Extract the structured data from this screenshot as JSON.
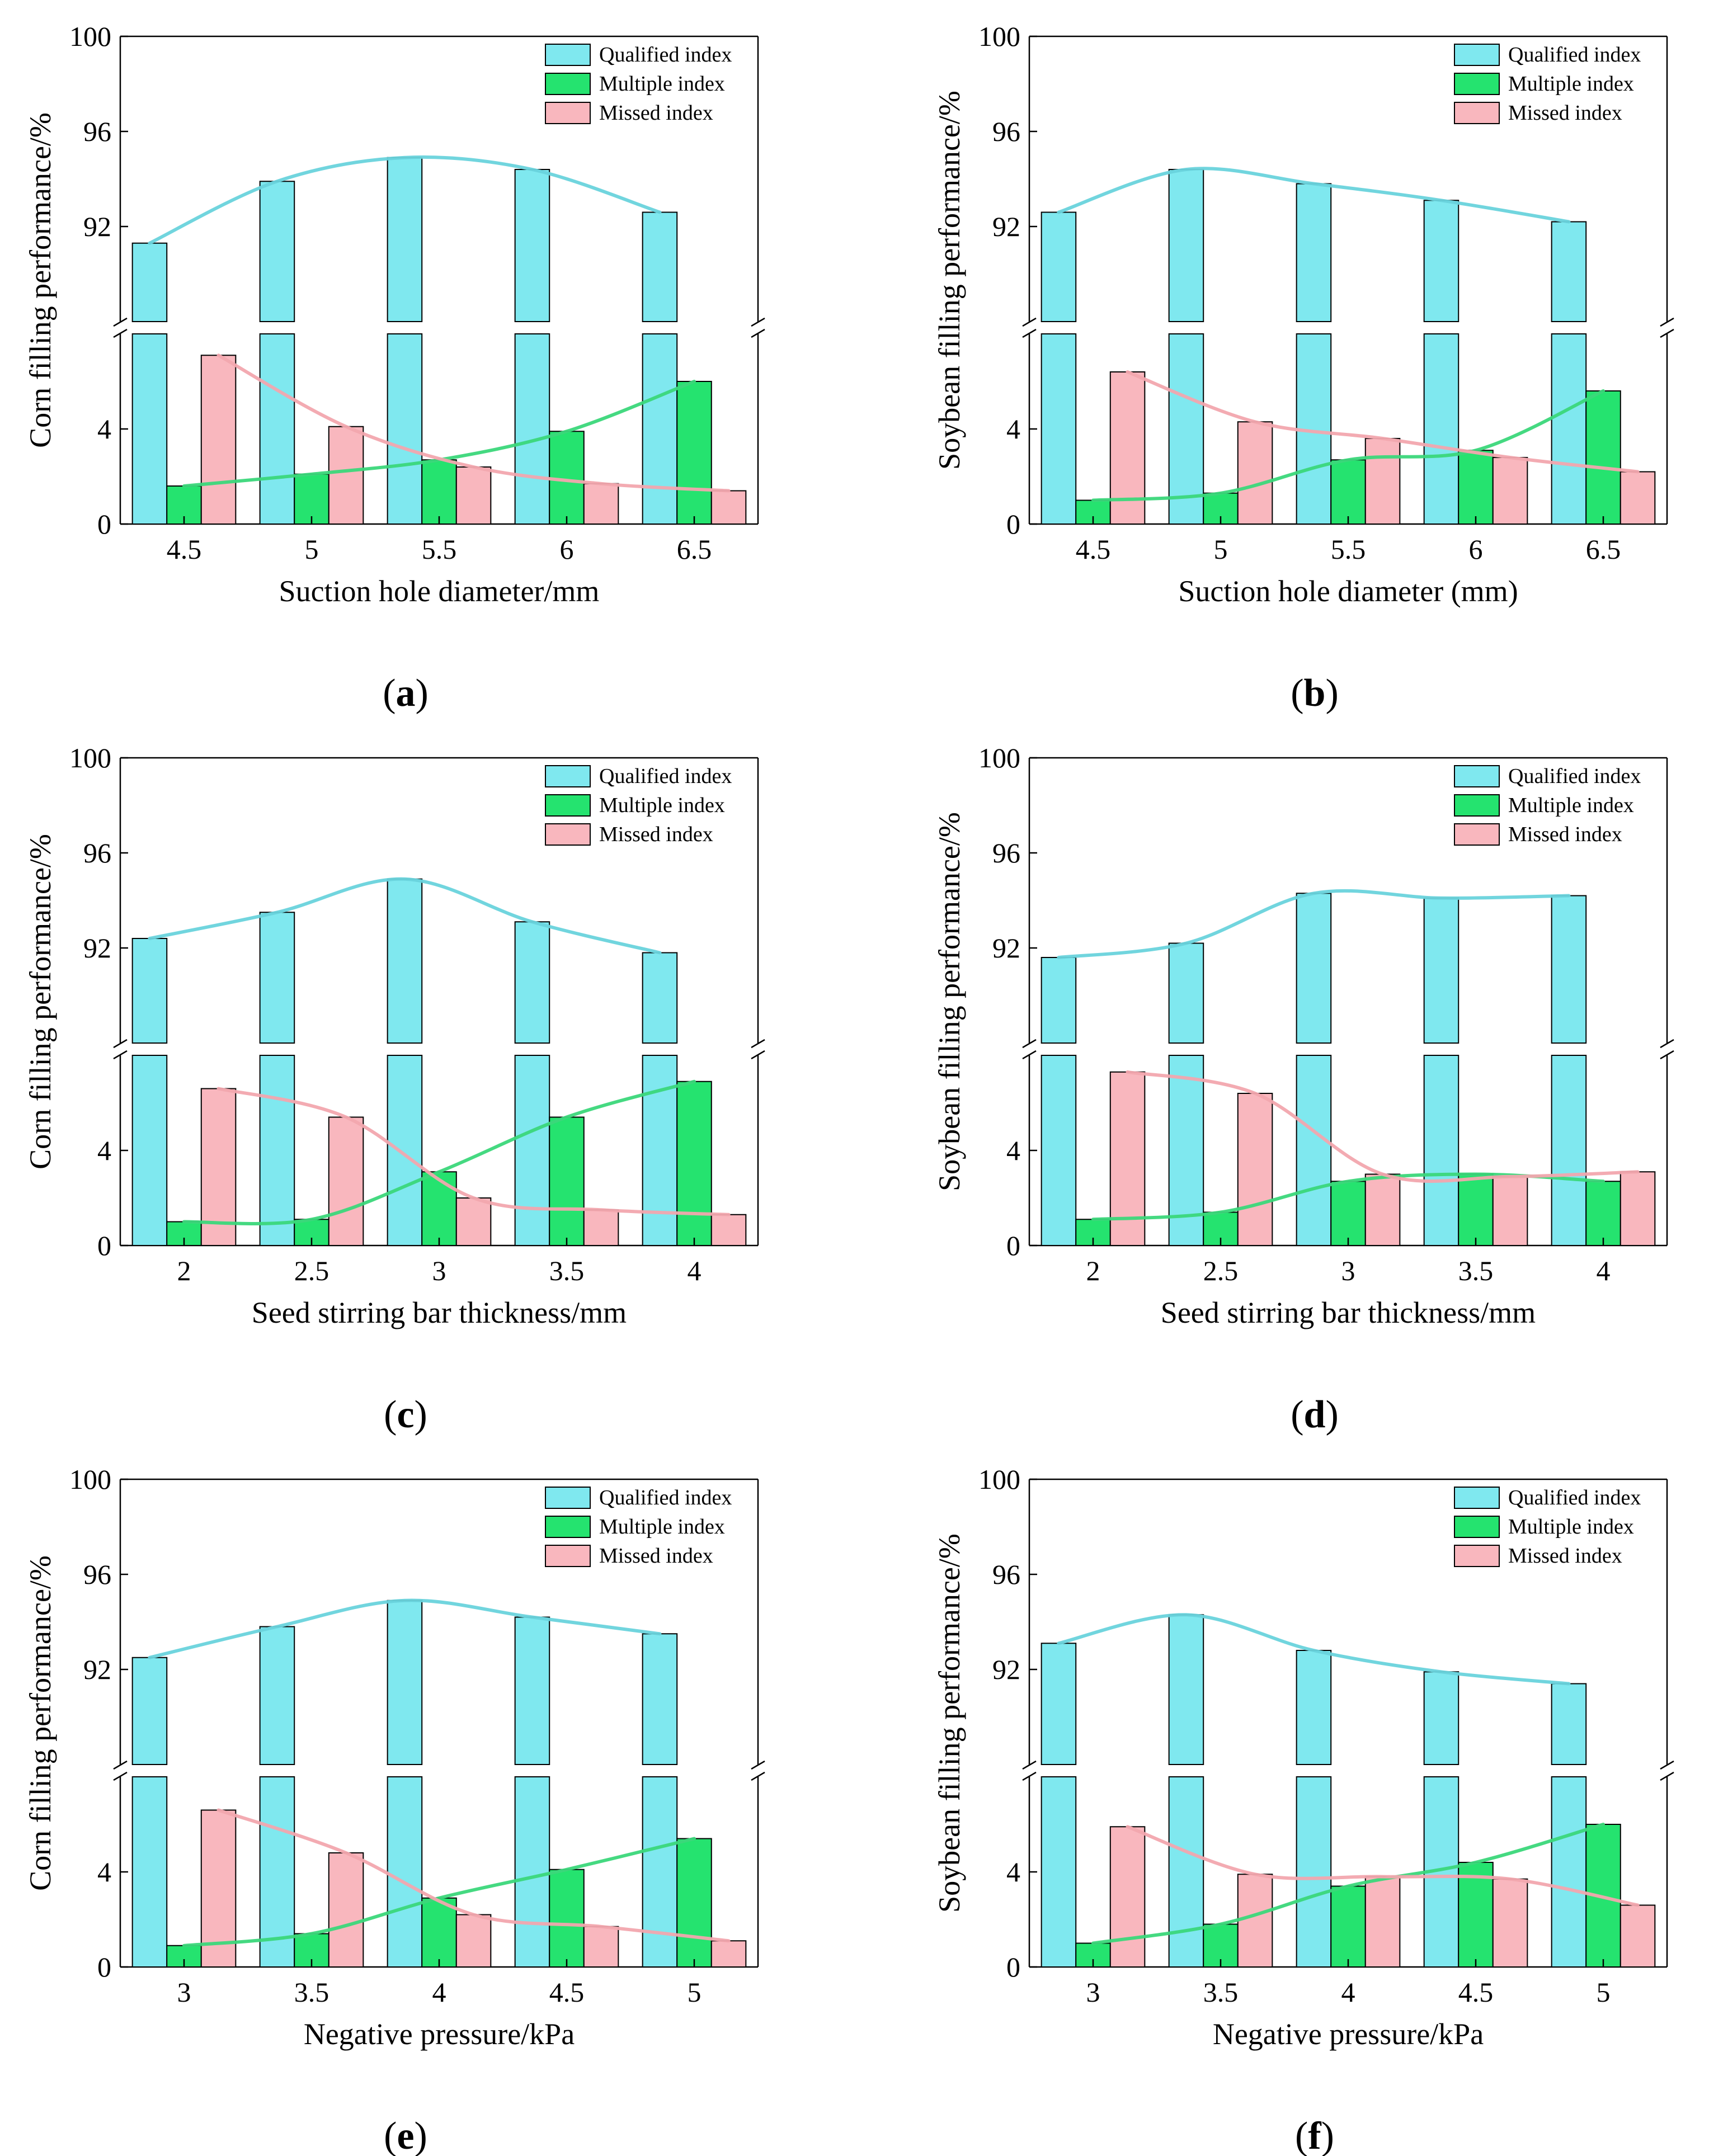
{
  "colors": {
    "qualified": "#7fe8ef",
    "multiple": "#25e36f",
    "missed": "#f9b7be",
    "qualified_line": "#69d3dc",
    "multiple_line": "#3bd77a",
    "missed_line": "#f2a7ae"
  },
  "chart_data": [
    {
      "id": "a",
      "type": "bar",
      "panel_label": "a",
      "title": "",
      "xlabel": "Suction hole diameter/mm",
      "ylabel": "Corn filling performance/%",
      "categories": [
        "4.5",
        "5",
        "5.5",
        "6",
        "6.5"
      ],
      "series": [
        {
          "name": "Qualified index",
          "values": [
            91.3,
            93.9,
            94.9,
            94.4,
            92.6
          ]
        },
        {
          "name": "Multiple index",
          "values": [
            1.6,
            2.1,
            2.7,
            3.9,
            6.0
          ]
        },
        {
          "name": "Missed index",
          "values": [
            7.1,
            4.1,
            2.4,
            1.7,
            1.4
          ]
        }
      ],
      "y_ticks_lower": [
        "0",
        "4"
      ],
      "y_ticks_upper": [
        "92",
        "96",
        "100"
      ],
      "ylim_lower": [
        0,
        8
      ],
      "ylim_upper": [
        88,
        100
      ],
      "legend": "top-right"
    },
    {
      "id": "b",
      "type": "bar",
      "panel_label": "b",
      "title": "",
      "xlabel": "Suction hole diameter (mm)",
      "ylabel": "Soybean filling performance/%",
      "categories": [
        "4.5",
        "5",
        "5.5",
        "6",
        "6.5"
      ],
      "series": [
        {
          "name": "Qualified index",
          "values": [
            92.6,
            94.4,
            93.8,
            93.1,
            92.2
          ]
        },
        {
          "name": "Multiple index",
          "values": [
            1.0,
            1.3,
            2.7,
            3.1,
            5.6
          ]
        },
        {
          "name": "Missed index",
          "values": [
            6.4,
            4.3,
            3.6,
            2.8,
            2.2
          ]
        }
      ],
      "y_ticks_lower": [
        "0",
        "4"
      ],
      "y_ticks_upper": [
        "92",
        "96",
        "100"
      ],
      "ylim_lower": [
        0,
        8
      ],
      "ylim_upper": [
        88,
        100
      ],
      "legend": "top-right"
    },
    {
      "id": "c",
      "type": "bar",
      "panel_label": "c",
      "title": "",
      "xlabel": "Seed stirring bar thickness/mm",
      "ylabel": "Corn filling performance/%",
      "categories": [
        "2",
        "2.5",
        "3",
        "3.5",
        "4"
      ],
      "series": [
        {
          "name": "Qualified index",
          "values": [
            92.4,
            93.5,
            94.9,
            93.1,
            91.8
          ]
        },
        {
          "name": "Multiple index",
          "values": [
            1.0,
            1.1,
            3.1,
            5.4,
            6.9
          ]
        },
        {
          "name": "Missed index",
          "values": [
            6.6,
            5.4,
            2.0,
            1.5,
            1.3
          ]
        }
      ],
      "y_ticks_lower": [
        "0",
        "4"
      ],
      "y_ticks_upper": [
        "92",
        "96",
        "100"
      ],
      "ylim_lower": [
        0,
        8
      ],
      "ylim_upper": [
        88,
        100
      ],
      "legend": "top-right"
    },
    {
      "id": "d",
      "type": "bar",
      "panel_label": "d",
      "title": "",
      "xlabel": "Seed stirring bar thickness/mm",
      "ylabel": "Soybean filling performance/%",
      "categories": [
        "2",
        "2.5",
        "3",
        "3.5",
        "4"
      ],
      "series": [
        {
          "name": "Qualified index",
          "values": [
            91.6,
            92.2,
            94.3,
            94.1,
            94.2
          ]
        },
        {
          "name": "Multiple index",
          "values": [
            1.1,
            1.4,
            2.7,
            3.0,
            2.7
          ]
        },
        {
          "name": "Missed index",
          "values": [
            7.3,
            6.4,
            3.0,
            2.9,
            3.1
          ]
        }
      ],
      "y_ticks_lower": [
        "0",
        "4"
      ],
      "y_ticks_upper": [
        "92",
        "96",
        "100"
      ],
      "ylim_lower": [
        0,
        8
      ],
      "ylim_upper": [
        88,
        100
      ],
      "legend": "top-right"
    },
    {
      "id": "e",
      "type": "bar",
      "panel_label": "e",
      "title": "",
      "xlabel": "Negative pressure/kPa",
      "ylabel": "Corn filling performance/%",
      "categories": [
        "3",
        "3.5",
        "4",
        "4.5",
        "5"
      ],
      "series": [
        {
          "name": "Qualified index",
          "values": [
            92.5,
            93.8,
            94.9,
            94.2,
            93.5
          ]
        },
        {
          "name": "Multiple index",
          "values": [
            0.9,
            1.4,
            2.9,
            4.1,
            5.4
          ]
        },
        {
          "name": "Missed index",
          "values": [
            6.6,
            4.8,
            2.2,
            1.7,
            1.1
          ]
        }
      ],
      "y_ticks_lower": [
        "0",
        "4"
      ],
      "y_ticks_upper": [
        "92",
        "96",
        "100"
      ],
      "ylim_lower": [
        0,
        8
      ],
      "ylim_upper": [
        88,
        100
      ],
      "legend": "top-right"
    },
    {
      "id": "f",
      "type": "bar",
      "panel_label": "f",
      "title": "",
      "xlabel": "Negative pressure/kPa",
      "ylabel": "Soybean filling performance/%",
      "categories": [
        "3",
        "3.5",
        "4",
        "4.5",
        "5"
      ],
      "series": [
        {
          "name": "Qualified index",
          "values": [
            93.1,
            94.3,
            92.8,
            91.9,
            91.4
          ]
        },
        {
          "name": "Multiple index",
          "values": [
            1.0,
            1.8,
            3.4,
            4.4,
            6.0
          ]
        },
        {
          "name": "Missed index",
          "values": [
            5.9,
            3.9,
            3.8,
            3.7,
            2.6
          ]
        }
      ],
      "y_ticks_lower": [
        "0",
        "4"
      ],
      "y_ticks_upper": [
        "92",
        "96",
        "100"
      ],
      "ylim_lower": [
        0,
        8
      ],
      "ylim_upper": [
        88,
        100
      ],
      "legend": "top-right"
    }
  ]
}
